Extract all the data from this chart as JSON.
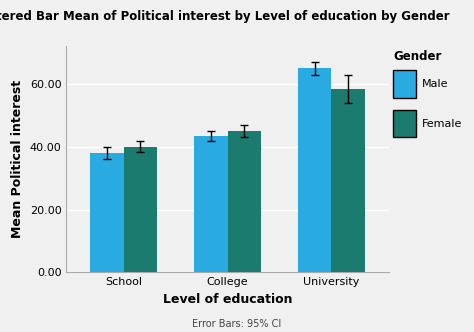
{
  "title": "Clustered Bar Mean of Political interest by Level of education by Gender",
  "xlabel": "Level of education",
  "ylabel": "Mean Political interest",
  "footnote": "Error Bars: 95% CI",
  "categories": [
    "School",
    "College",
    "University"
  ],
  "male_values": [
    38.0,
    43.5,
    65.0
  ],
  "female_values": [
    40.0,
    45.0,
    58.5
  ],
  "male_errors": [
    1.8,
    1.5,
    2.0
  ],
  "female_errors": [
    1.8,
    2.0,
    4.5
  ],
  "male_color": "#29ABE2",
  "female_color": "#1A7B6E",
  "ylim": [
    0,
    72
  ],
  "yticks": [
    0.0,
    20.0,
    40.0,
    60.0
  ],
  "ytick_labels": [
    "0.00",
    "20.00",
    "40.00",
    "60.00"
  ],
  "legend_title": "Gender",
  "legend_labels": [
    "Male",
    "Female"
  ],
  "bar_width": 0.32,
  "plot_bg_color": "#f0f0f0",
  "fig_bg_color": "#f0f0f0",
  "grid_color": "#ffffff",
  "title_fontsize": 8.5,
  "axis_label_fontsize": 9,
  "tick_fontsize": 8,
  "legend_fontsize": 8
}
